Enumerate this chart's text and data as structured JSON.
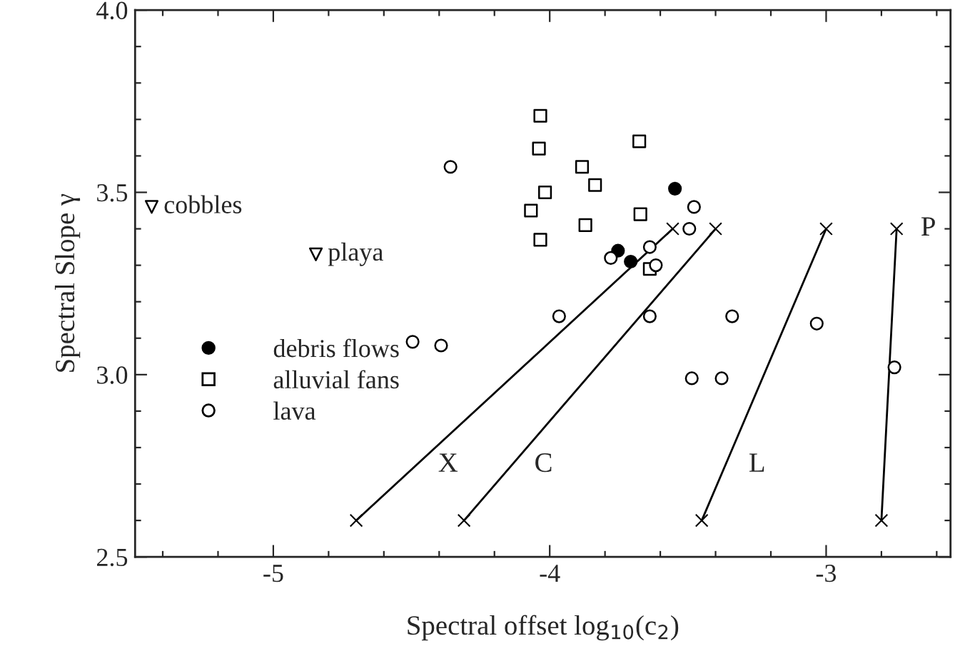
{
  "chart_data": {
    "type": "scatter",
    "xlabel": "Spectral offset log$_{10}$(c$_{2}$)",
    "ylabel": "Spectral Slope γ",
    "xlim": [
      -5.5,
      -2.55
    ],
    "ylim": [
      2.5,
      4.0
    ],
    "xticks": [
      {
        "value": -5.4,
        "label": null
      },
      {
        "value": -5.2,
        "label": null
      },
      -5,
      {
        "value": -4.8,
        "label": null
      },
      {
        "value": -4.6,
        "label": null
      },
      {
        "value": -4.4,
        "label": null
      },
      {
        "value": -4.2,
        "label": null
      },
      -4,
      {
        "value": -3.8,
        "label": null
      },
      {
        "value": -3.6,
        "label": null
      },
      {
        "value": -3.4,
        "label": null
      },
      {
        "value": -3.2,
        "label": null
      },
      -3,
      {
        "value": -2.8,
        "label": null
      },
      {
        "value": -2.6,
        "label": null
      }
    ],
    "yticks": [
      {
        "value": 2.5,
        "label": "2.5"
      },
      {
        "value": 2.6,
        "label": null
      },
      {
        "value": 2.7,
        "label": null
      },
      {
        "value": 2.8,
        "label": null
      },
      {
        "value": 2.9,
        "label": null
      },
      {
        "value": 3.0,
        "label": "3.0"
      },
      {
        "value": 3.1,
        "label": null
      },
      {
        "value": 3.2,
        "label": null
      },
      {
        "value": 3.3,
        "label": null
      },
      {
        "value": 3.4,
        "label": null
      },
      {
        "value": 3.5,
        "label": "3.5"
      },
      {
        "value": 3.6,
        "label": null
      },
      {
        "value": 3.7,
        "label": null
      },
      {
        "value": 3.8,
        "label": null
      },
      {
        "value": 3.9,
        "label": null
      },
      {
        "value": 4.0,
        "label": "4.0"
      }
    ],
    "grid": false,
    "legend": "left",
    "series": [
      {
        "name": "debris flows",
        "color": "#000000",
        "marker": "circle",
        "x": [
          -3.547,
          -3.753,
          -3.707
        ],
        "values": [
          3.51,
          3.34,
          3.31
        ]
      },
      {
        "name": "alluvial fans",
        "color": "#000000",
        "marker": "square",
        "x": [
          -4.034,
          -4.039,
          -4.017,
          -4.068,
          -4.034,
          -3.883,
          -3.836,
          -3.676,
          -3.871,
          -3.672,
          -3.638
        ],
        "values": [
          3.71,
          3.62,
          3.5,
          3.45,
          3.37,
          3.57,
          3.52,
          3.64,
          3.41,
          3.44,
          3.29
        ]
      },
      {
        "name": "lava",
        "color": "#000000",
        "marker": "circle",
        "x": [
          -4.359,
          -4.496,
          -4.393,
          -3.966,
          -3.478,
          -3.495,
          -3.779,
          -3.638,
          -3.616,
          -3.638,
          -3.34,
          -3.486,
          -3.378,
          -3.034,
          -2.753
        ],
        "values": [
          3.57,
          3.09,
          3.08,
          3.16,
          3.46,
          3.4,
          3.32,
          3.35,
          3.3,
          3.16,
          3.16,
          2.99,
          2.99,
          3.14,
          3.02
        ]
      },
      {
        "color": "#000000",
        "marker": "triangle",
        "x": [
          -5.44,
          -4.846
        ],
        "values": [
          3.46,
          3.33
        ]
      },
      {
        "type": "line",
        "name": "X",
        "color": "#000000",
        "marker": "cross",
        "x": [
          -4.7,
          -3.555
        ],
        "values": [
          2.6,
          3.4
        ]
      },
      {
        "type": "line",
        "name": "C",
        "color": "#000000",
        "marker": "cross",
        "x": [
          -4.31,
          -3.4
        ],
        "values": [
          2.6,
          3.4
        ]
      },
      {
        "type": "line",
        "name": "L",
        "color": "#000000",
        "marker": "cross",
        "x": [
          -3.45,
          -3.0
        ],
        "values": [
          2.6,
          3.4
        ]
      },
      {
        "type": "line",
        "name": "P",
        "color": "#000000",
        "marker": "cross",
        "x": [
          -2.8,
          -2.745
        ],
        "values": [
          2.6,
          3.4
        ]
      }
    ],
    "annotations": [
      {
        "text": "cobbles",
        "x": -5.44,
        "y": 3.46
      },
      {
        "text": "playa",
        "x": -4.846,
        "y": 3.33
      }
    ]
  }
}
